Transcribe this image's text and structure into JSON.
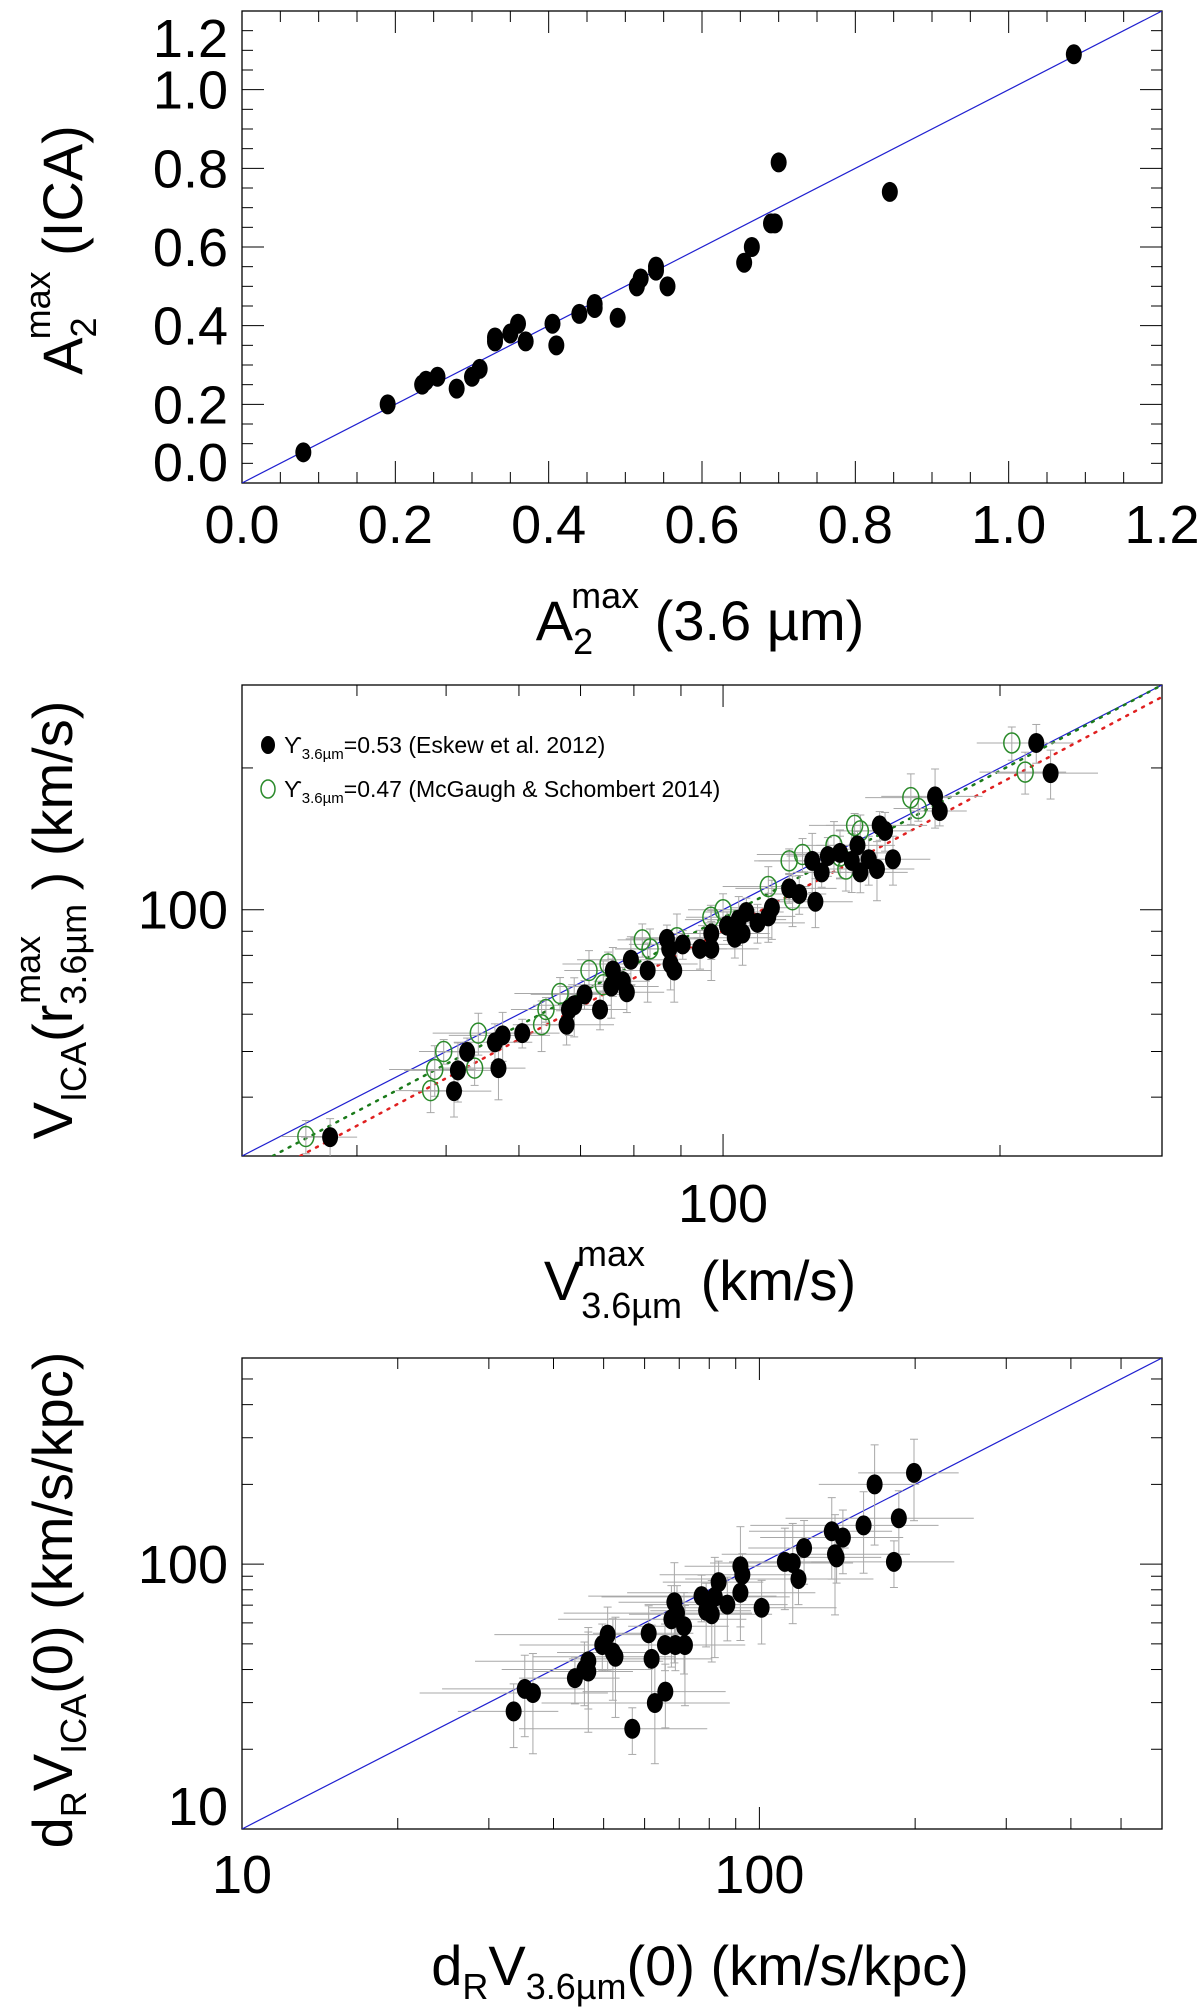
{
  "colors": {
    "identity_line": "#2020d0",
    "filled": "#000000",
    "open": "#2a8a2a",
    "fit_green": "#1a7a1a",
    "fit_red": "#e02020",
    "error_bar": "#a8a8a8"
  },
  "chart_data": [
    {
      "type": "scatter",
      "scale": "linear",
      "xlim": [
        0.0,
        1.2
      ],
      "ylim": [
        0.0,
        1.2
      ],
      "xticks": [
        "0.0",
        "0.2",
        "0.4",
        "0.6",
        "0.8",
        "1.0",
        "1.2"
      ],
      "yticks": [
        "0.0",
        "0.2",
        "0.4",
        "0.6",
        "0.8",
        "1.0",
        "1.2"
      ],
      "xlabel": {
        "base": "A",
        "sub": "2",
        "sup": "max",
        "rest": " (3.6 µm)"
      },
      "ylabel": {
        "base": "A",
        "sub": "2",
        "sup": "max",
        "rest": " (ICA)"
      },
      "identity_line": true,
      "series": [
        {
          "name": "galaxies",
          "marker": "filled",
          "points": [
            [
              0.08,
              0.078
            ],
            [
              0.19,
              0.2
            ],
            [
              0.235,
              0.25
            ],
            [
              0.24,
              0.26
            ],
            [
              0.255,
              0.27
            ],
            [
              0.28,
              0.24
            ],
            [
              0.3,
              0.27
            ],
            [
              0.31,
              0.29
            ],
            [
              0.33,
              0.36
            ],
            [
              0.33,
              0.37
            ],
            [
              0.35,
              0.38
            ],
            [
              0.36,
              0.405
            ],
            [
              0.37,
              0.36
            ],
            [
              0.405,
              0.405
            ],
            [
              0.41,
              0.35
            ],
            [
              0.44,
              0.43
            ],
            [
              0.46,
              0.455
            ],
            [
              0.46,
              0.445
            ],
            [
              0.49,
              0.42
            ],
            [
              0.515,
              0.5
            ],
            [
              0.52,
              0.52
            ],
            [
              0.54,
              0.55
            ],
            [
              0.54,
              0.54
            ],
            [
              0.555,
              0.5
            ],
            [
              0.655,
              0.56
            ],
            [
              0.665,
              0.6
            ],
            [
              0.69,
              0.66
            ],
            [
              0.695,
              0.66
            ],
            [
              0.7,
              0.815
            ],
            [
              0.845,
              0.74
            ],
            [
              1.085,
              1.09
            ]
          ]
        }
      ]
    },
    {
      "type": "scatter",
      "scale": "log",
      "xlim": [
        30,
        300
      ],
      "ylim": [
        30,
        300
      ],
      "xticks": [
        "100"
      ],
      "yticks": [
        "100"
      ],
      "xlabel": {
        "base": "V",
        "sub": "3.6µm",
        "sup": "max",
        "rest": "  (km/s)"
      },
      "ylabel": {
        "base": "V",
        "sub": "ICA",
        "mid": "(r",
        "sub2": "3.6µm",
        "sup": "max",
        "rest": " )  (km/s)"
      },
      "identity_line": true,
      "fit_lines": [
        {
          "name": "fit-green",
          "color_key": "fit_green",
          "from": [
            32.4,
            30
          ],
          "to": [
            300,
            300
          ]
        },
        {
          "name": "fit-red",
          "color_key": "fit_red",
          "from": [
            34.7,
            30
          ],
          "to": [
            300,
            283
          ]
        }
      ],
      "legend": {
        "position": "top-left",
        "entries": [
          {
            "marker": "filled",
            "symbol": "ϒ",
            "sub": "3.6µm",
            "text": "=0.53 (Eskew et al. 2012)"
          },
          {
            "marker": "open",
            "symbol": "ϒ",
            "sub": "3.6µm",
            "text": "=0.47 (McGaugh & Schombert 2014)"
          }
        ]
      },
      "series": [
        {
          "name": "Upsilon 0.47",
          "marker": "open",
          "error_frac": [
            0.06,
            0.06
          ],
          "points": [
            [
              35.2,
              33.0
            ],
            [
              48.1,
              41.3
            ],
            [
              48.6,
              45.8
            ],
            [
              49.7,
              50
            ],
            [
              53.7,
              46.1
            ],
            [
              54.2,
              54.7
            ],
            [
              63.5,
              57
            ],
            [
              64.2,
              61.4
            ],
            [
              66.5,
              66.4
            ],
            [
              71.5,
              74.3
            ],
            [
              74.1,
              69.3
            ],
            [
              75,
              76.7
            ],
            [
              81.7,
              86.3
            ],
            [
              83.3,
              82.6
            ],
            [
              89.1,
              87.2
            ],
            [
              97,
              96.4
            ],
            [
              100,
              100
            ],
            [
              112,
              112
            ],
            [
              119,
              105
            ],
            [
              118,
              127
            ],
            [
              122,
              131
            ],
            [
              134,
              130
            ],
            [
              132,
              137
            ],
            [
              139,
              151
            ],
            [
              141,
              147
            ],
            [
              136,
              122
            ],
            [
              160,
              173
            ],
            [
              163,
              164
            ],
            [
              206,
              226
            ],
            [
              213,
              196
            ]
          ]
        },
        {
          "name": "Upsilon 0.53",
          "marker": "filled",
          "error_frac": [
            0.07,
            0.07
          ],
          "points": [
            [
              37.4,
              32.9
            ],
            [
              51,
              41.2
            ],
            [
              51.5,
              45.6
            ],
            [
              52.7,
              49.9
            ],
            [
              56.5,
              52.3
            ],
            [
              57.6,
              54.1
            ],
            [
              57,
              46.1
            ],
            [
              60.5,
              54.7
            ],
            [
              67.6,
              57
            ],
            [
              68,
              61.4
            ],
            [
              68.9,
              62.7
            ],
            [
              70.7,
              66.1
            ],
            [
              73.5,
              61.4
            ],
            [
              75.9,
              74.3
            ],
            [
              75.6,
              68.7
            ],
            [
              77.8,
              70.5
            ],
            [
              78.6,
              66.8
            ],
            [
              79.4,
              78.3
            ],
            [
              82.8,
              74.3
            ],
            [
              86.9,
              86.7
            ],
            [
              87.4,
              82.6
            ],
            [
              87.7,
              76.7
            ],
            [
              88.5,
              74.3
            ],
            [
              90.4,
              84.4
            ],
            [
              94.4,
              82.6
            ],
            [
              97.1,
              89
            ],
            [
              97.1,
              82.6
            ],
            [
              101,
              92.5
            ],
            [
              103,
              87.2
            ],
            [
              104,
              95.3
            ],
            [
              105,
              89
            ],
            [
              106,
              98.9
            ],
            [
              109,
              93.8
            ],
            [
              112,
              96.8
            ],
            [
              113,
              101
            ],
            [
              118,
              111
            ],
            [
              121,
              108
            ],
            [
              126,
              104
            ],
            [
              125,
              127
            ],
            [
              128,
              120
            ],
            [
              130,
              130
            ],
            [
              134,
              132
            ],
            [
              138,
              127
            ],
            [
              140,
              137
            ],
            [
              141,
              120
            ],
            [
              144,
              128
            ],
            [
              147,
              122
            ],
            [
              148,
              151
            ],
            [
              150,
              147
            ],
            [
              153,
              128
            ],
            [
              170,
              174
            ],
            [
              172,
              162
            ],
            [
              219,
              226
            ],
            [
              227,
              195
            ]
          ]
        }
      ]
    },
    {
      "type": "scatter",
      "scale": "log",
      "xlim": [
        10,
        600
      ],
      "ylim": [
        10,
        600
      ],
      "xticks": [
        "10",
        "100"
      ],
      "yticks": [
        "10",
        "100"
      ],
      "xlabel": {
        "pre": "d",
        "presub": "R",
        "base": "V",
        "sub": "3.6µm",
        "rest": "(0) (km/s/kpc)"
      },
      "ylabel": {
        "pre": "d",
        "presub": "R",
        "base": "V",
        "sub": "ICA",
        "rest": "(0)  (km/s/kpc)"
      },
      "identity_line": true,
      "series": [
        {
          "name": "galaxies",
          "marker": "filled",
          "error_frac": [
            0.22,
            0.2
          ],
          "points": [
            [
              33.5,
              27.8
            ],
            [
              35.2,
              33.8
            ],
            [
              36.5,
              32.6
            ],
            [
              44,
              37.1
            ],
            [
              45.9,
              40
            ],
            [
              46.7,
              43
            ],
            [
              46.7,
              39.3
            ],
            [
              49.7,
              49.5
            ],
            [
              50.9,
              54.2
            ],
            [
              52.1,
              46.4
            ],
            [
              52.7,
              44.7
            ],
            [
              56.8,
              23.9
            ],
            [
              61.1,
              54.8
            ],
            [
              61.9,
              43.9
            ],
            [
              62.8,
              29.9
            ],
            [
              65.7,
              49.5
            ],
            [
              65.8,
              33
            ],
            [
              67.6,
              61.9
            ],
            [
              68.5,
              71.8
            ],
            [
              68.8,
              49.5
            ],
            [
              69.3,
              65.3
            ],
            [
              71.5,
              58.3
            ],
            [
              71.8,
              49.5
            ],
            [
              77.3,
              75.7
            ],
            [
              78.9,
              66.7
            ],
            [
              80.9,
              64.7
            ],
            [
              82,
              75.2
            ],
            [
              83.4,
              85.5
            ],
            [
              86.7,
              70.3
            ],
            [
              91.9,
              78
            ],
            [
              91.9,
              98.2
            ],
            [
              92.7,
              91.2
            ],
            [
              101,
              68.4
            ],
            [
              112,
              102
            ],
            [
              116,
              101
            ],
            [
              119,
              87.9
            ],
            [
              122,
              115
            ],
            [
              138,
              133
            ],
            [
              140,
              109
            ],
            [
              141,
              106
            ],
            [
              145,
              126
            ],
            [
              159,
              140
            ],
            [
              167,
              200
            ],
            [
              182,
              102
            ],
            [
              186,
              149
            ],
            [
              199,
              221
            ]
          ]
        }
      ]
    }
  ]
}
